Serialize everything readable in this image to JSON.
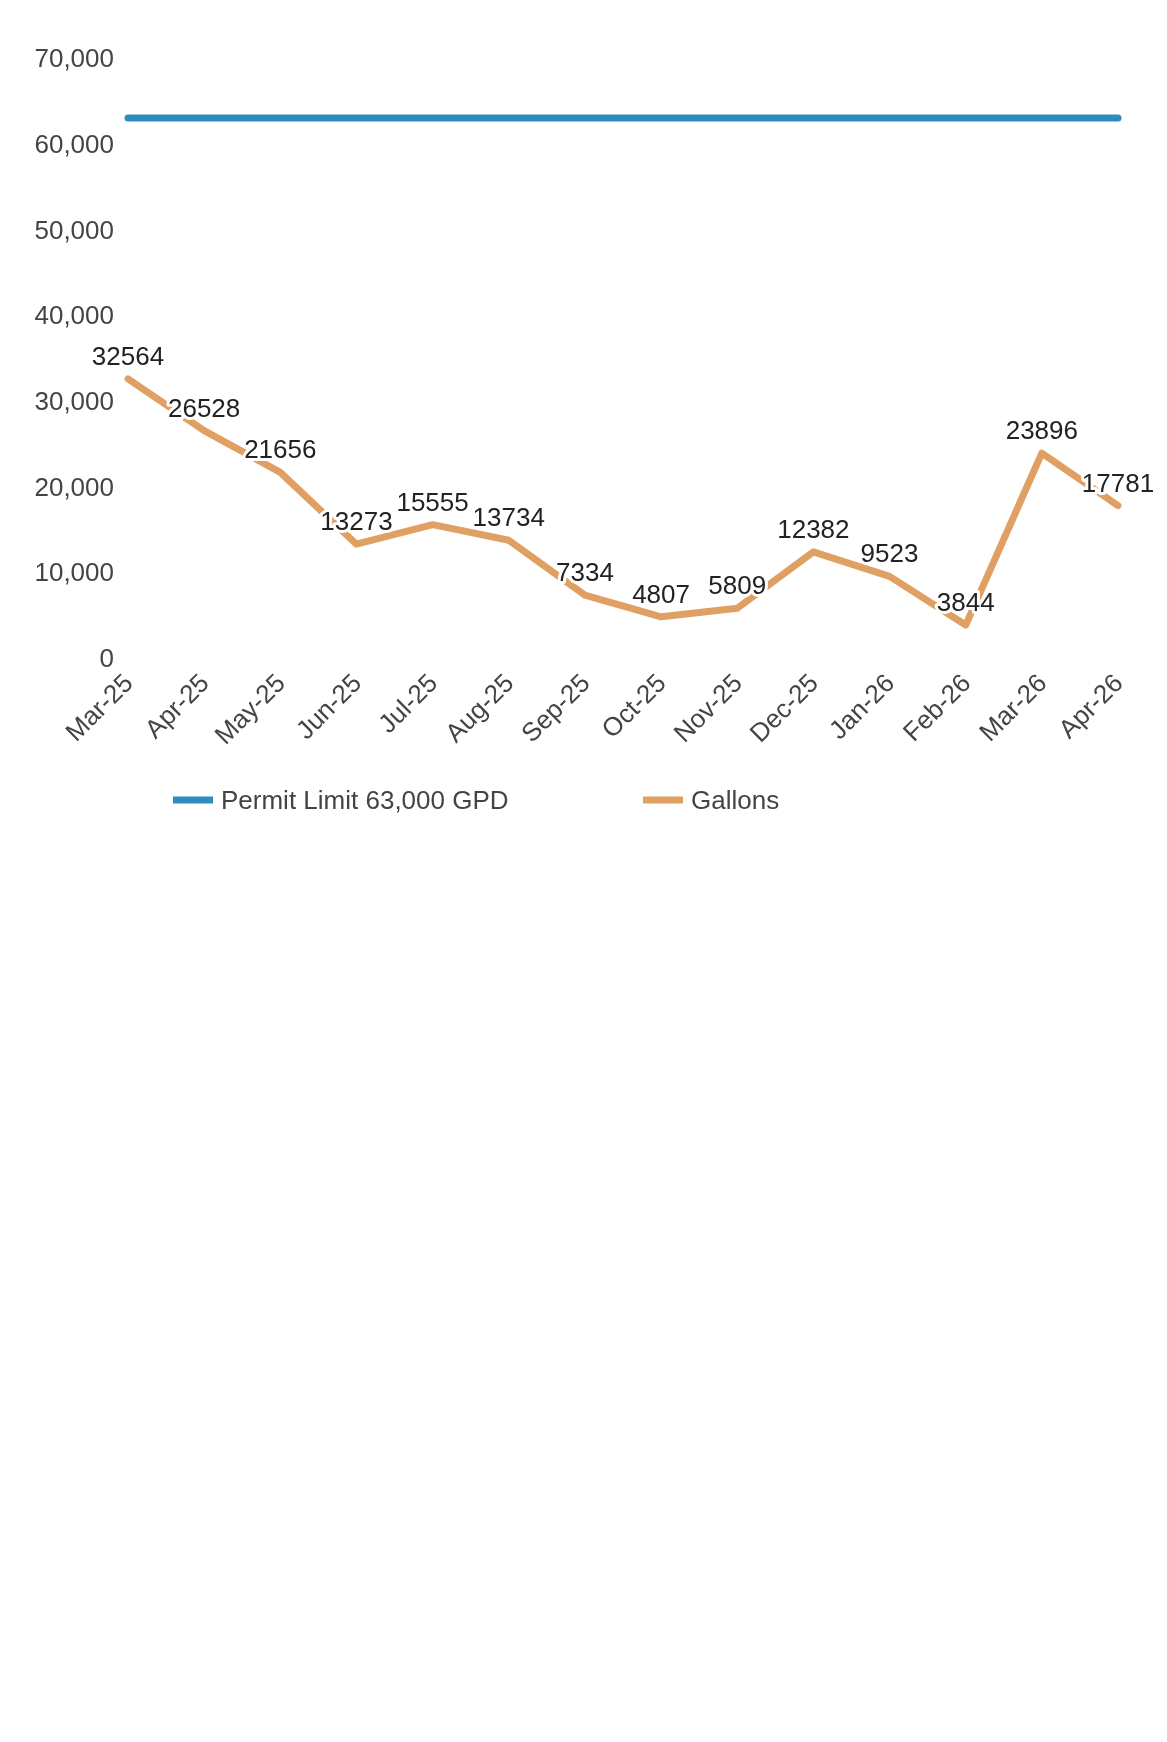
{
  "chart_data": {
    "type": "line",
    "categories": [
      "Mar-25",
      "Apr-25",
      "May-25",
      "Jun-25",
      "Jul-25",
      "Aug-25",
      "Sep-25",
      "Oct-25",
      "Nov-25",
      "Dec-25",
      "Jan-26",
      "Feb-26",
      "Mar-26",
      "Apr-26"
    ],
    "series": [
      {
        "name": "Permit Limit 63,000 GPD",
        "color": "#2e8bc0",
        "values": [
          63000,
          63000,
          63000,
          63000,
          63000,
          63000,
          63000,
          63000,
          63000,
          63000,
          63000,
          63000,
          63000,
          63000
        ]
      },
      {
        "name": "Gallons",
        "color": "#e0a064",
        "values": [
          32564,
          26528,
          21656,
          13273,
          15555,
          13734,
          7334,
          4807,
          5809,
          12382,
          9523,
          3844,
          23896,
          17781
        ],
        "value_labels": [
          "32564",
          "26528",
          "21656",
          "13273",
          "15555",
          "13734",
          "7334",
          "4807",
          "5809",
          "12382",
          "9523",
          "3844",
          "23896",
          "17781"
        ]
      }
    ],
    "ylim": [
      0,
      70000
    ],
    "yticks": [
      {
        "value": 0,
        "label": "0"
      },
      {
        "value": 10000,
        "label": "10,000"
      },
      {
        "value": 20000,
        "label": "20,000"
      },
      {
        "value": 30000,
        "label": "30,000"
      },
      {
        "value": 40000,
        "label": "40,000"
      },
      {
        "value": 50000,
        "label": "50,000"
      },
      {
        "value": 60000,
        "label": "60,000"
      },
      {
        "value": 70000,
        "label": "70,000"
      }
    ],
    "legend": "bottom",
    "marker": "none",
    "line_style": "solid"
  }
}
